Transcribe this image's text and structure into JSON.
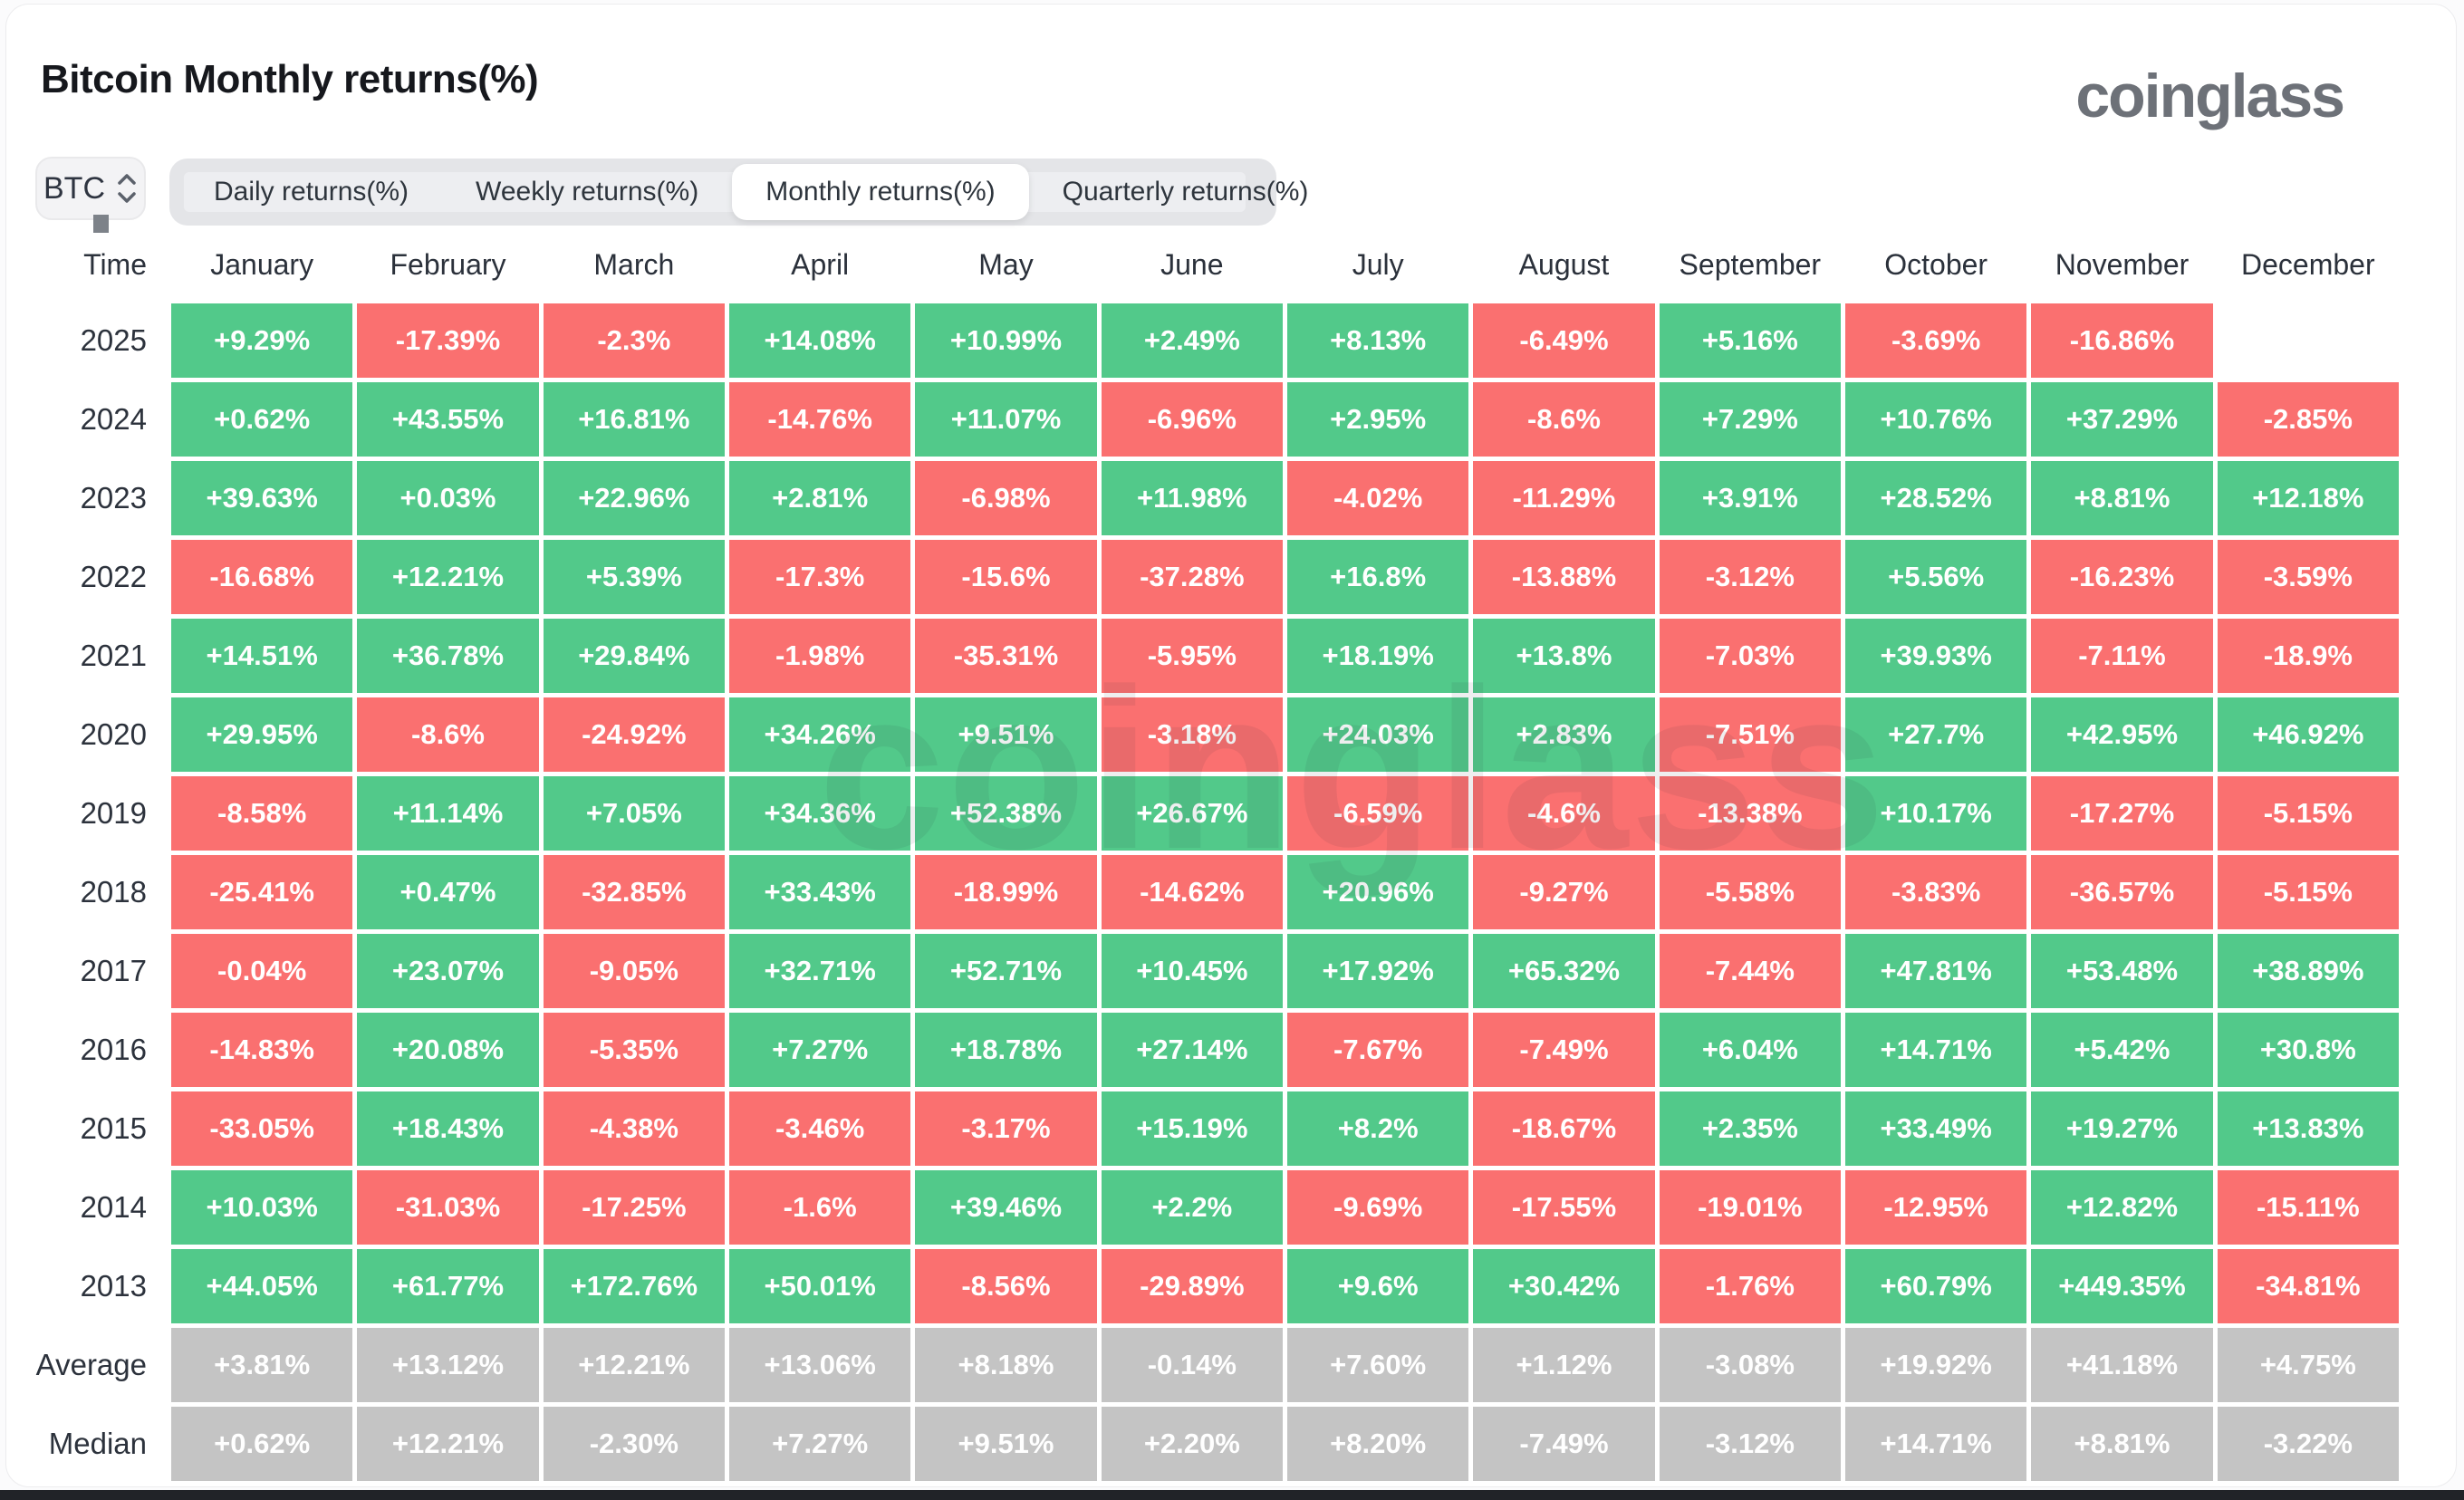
{
  "page": {
    "title": "Bitcoin Monthly returns(%)",
    "logo": "coinglass",
    "watermark": "coinglass"
  },
  "controls": {
    "symbol": "BTC",
    "tabs": [
      {
        "label": "Daily returns(%)",
        "active": false
      },
      {
        "label": "Weekly returns(%)",
        "active": false
      },
      {
        "label": "Monthly returns(%)",
        "active": true
      },
      {
        "label": "Quarterly returns(%)",
        "active": false
      }
    ]
  },
  "colors": {
    "positive": "#52C98A",
    "negative": "#FA7070",
    "summary": "#C4C4C4"
  },
  "chart_data": {
    "type": "table",
    "title": "Bitcoin Monthly returns(%)",
    "columns": [
      "Time",
      "January",
      "February",
      "March",
      "April",
      "May",
      "June",
      "July",
      "August",
      "September",
      "October",
      "November",
      "December"
    ],
    "rows": [
      {
        "label": "2025",
        "kind": "year",
        "values": [
          "+9.29%",
          "-17.39%",
          "-2.3%",
          "+14.08%",
          "+10.99%",
          "+2.49%",
          "+8.13%",
          "-6.49%",
          "+5.16%",
          "-3.69%",
          "-16.86%",
          null
        ]
      },
      {
        "label": "2024",
        "kind": "year",
        "values": [
          "+0.62%",
          "+43.55%",
          "+16.81%",
          "-14.76%",
          "+11.07%",
          "-6.96%",
          "+2.95%",
          "-8.6%",
          "+7.29%",
          "+10.76%",
          "+37.29%",
          "-2.85%"
        ]
      },
      {
        "label": "2023",
        "kind": "year",
        "values": [
          "+39.63%",
          "+0.03%",
          "+22.96%",
          "+2.81%",
          "-6.98%",
          "+11.98%",
          "-4.02%",
          "-11.29%",
          "+3.91%",
          "+28.52%",
          "+8.81%",
          "+12.18%"
        ]
      },
      {
        "label": "2022",
        "kind": "year",
        "values": [
          "-16.68%",
          "+12.21%",
          "+5.39%",
          "-17.3%",
          "-15.6%",
          "-37.28%",
          "+16.8%",
          "-13.88%",
          "-3.12%",
          "+5.56%",
          "-16.23%",
          "-3.59%"
        ]
      },
      {
        "label": "2021",
        "kind": "year",
        "values": [
          "+14.51%",
          "+36.78%",
          "+29.84%",
          "-1.98%",
          "-35.31%",
          "-5.95%",
          "+18.19%",
          "+13.8%",
          "-7.03%",
          "+39.93%",
          "-7.11%",
          "-18.9%"
        ]
      },
      {
        "label": "2020",
        "kind": "year",
        "values": [
          "+29.95%",
          "-8.6%",
          "-24.92%",
          "+34.26%",
          "+9.51%",
          "-3.18%",
          "+24.03%",
          "+2.83%",
          "-7.51%",
          "+27.7%",
          "+42.95%",
          "+46.92%"
        ]
      },
      {
        "label": "2019",
        "kind": "year",
        "values": [
          "-8.58%",
          "+11.14%",
          "+7.05%",
          "+34.36%",
          "+52.38%",
          "+26.67%",
          "-6.59%",
          "-4.6%",
          "-13.38%",
          "+10.17%",
          "-17.27%",
          "-5.15%"
        ]
      },
      {
        "label": "2018",
        "kind": "year",
        "values": [
          "-25.41%",
          "+0.47%",
          "-32.85%",
          "+33.43%",
          "-18.99%",
          "-14.62%",
          "+20.96%",
          "-9.27%",
          "-5.58%",
          "-3.83%",
          "-36.57%",
          "-5.15%"
        ]
      },
      {
        "label": "2017",
        "kind": "year",
        "values": [
          "-0.04%",
          "+23.07%",
          "-9.05%",
          "+32.71%",
          "+52.71%",
          "+10.45%",
          "+17.92%",
          "+65.32%",
          "-7.44%",
          "+47.81%",
          "+53.48%",
          "+38.89%"
        ]
      },
      {
        "label": "2016",
        "kind": "year",
        "values": [
          "-14.83%",
          "+20.08%",
          "-5.35%",
          "+7.27%",
          "+18.78%",
          "+27.14%",
          "-7.67%",
          "-7.49%",
          "+6.04%",
          "+14.71%",
          "+5.42%",
          "+30.8%"
        ]
      },
      {
        "label": "2015",
        "kind": "year",
        "values": [
          "-33.05%",
          "+18.43%",
          "-4.38%",
          "-3.46%",
          "-3.17%",
          "+15.19%",
          "+8.2%",
          "-18.67%",
          "+2.35%",
          "+33.49%",
          "+19.27%",
          "+13.83%"
        ]
      },
      {
        "label": "2014",
        "kind": "year",
        "values": [
          "+10.03%",
          "-31.03%",
          "-17.25%",
          "-1.6%",
          "+39.46%",
          "+2.2%",
          "-9.69%",
          "-17.55%",
          "-19.01%",
          "-12.95%",
          "+12.82%",
          "-15.11%"
        ]
      },
      {
        "label": "2013",
        "kind": "year",
        "values": [
          "+44.05%",
          "+61.77%",
          "+172.76%",
          "+50.01%",
          "-8.56%",
          "-29.89%",
          "+9.6%",
          "+30.42%",
          "-1.76%",
          "+60.79%",
          "+449.35%",
          "-34.81%"
        ]
      },
      {
        "label": "Average",
        "kind": "summary",
        "values": [
          "+3.81%",
          "+13.12%",
          "+12.21%",
          "+13.06%",
          "+8.18%",
          "-0.14%",
          "+7.60%",
          "+1.12%",
          "-3.08%",
          "+19.92%",
          "+41.18%",
          "+4.75%"
        ]
      },
      {
        "label": "Median",
        "kind": "summary",
        "values": [
          "+0.62%",
          "+12.21%",
          "-2.30%",
          "+7.27%",
          "+9.51%",
          "+2.20%",
          "+8.20%",
          "-7.49%",
          "-3.12%",
          "+14.71%",
          "+8.81%",
          "-3.22%"
        ]
      }
    ]
  }
}
